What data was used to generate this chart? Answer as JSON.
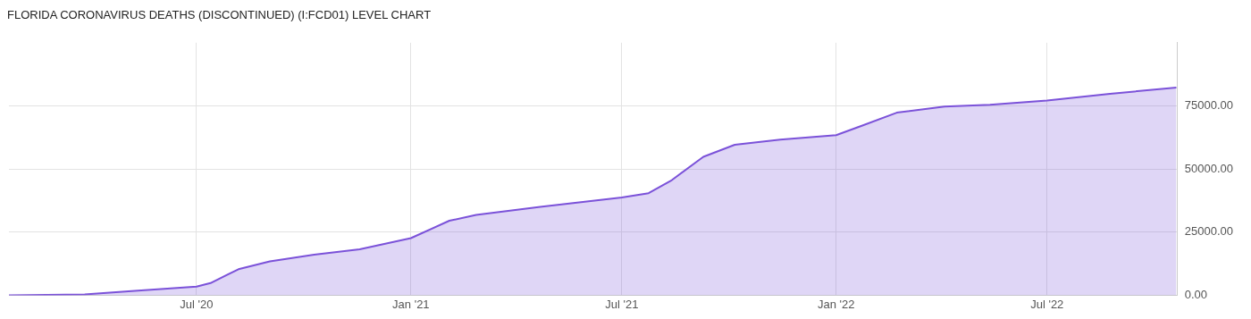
{
  "chart_data": {
    "type": "area",
    "title": "FLORIDA CORONAVIRUS DEATHS (DISCONTINUED) (I:FCD01) LEVEL CHART",
    "x": [
      "2020-01-22",
      "2020-03-27",
      "2020-05-09",
      "2020-07-01",
      "2020-07-13",
      "2020-08-06",
      "2020-09-02",
      "2020-10-10",
      "2020-11-18",
      "2021-01-01",
      "2021-02-03",
      "2021-02-26",
      "2021-04-22",
      "2021-07-01",
      "2021-07-24",
      "2021-08-13",
      "2021-09-09",
      "2021-10-06",
      "2021-11-14",
      "2022-01-01",
      "2022-01-23",
      "2022-02-22",
      "2022-04-04",
      "2022-05-13",
      "2022-07-01",
      "2022-08-24",
      "2022-10-20"
    ],
    "values": [
      0,
      300,
      1700,
      3400,
      4800,
      10300,
      13400,
      16100,
      18200,
      22600,
      29500,
      31800,
      35000,
      38700,
      40400,
      45600,
      54800,
      59600,
      61600,
      63400,
      67100,
      72300,
      74700,
      75400,
      77100,
      79800,
      82200
    ],
    "color": "#7b52d9",
    "xlim": [
      "2020-01-22",
      "2022-10-21"
    ],
    "xticks": [
      {
        "value": "2020-07-01",
        "label": "Jul '20"
      },
      {
        "value": "2021-01-01",
        "label": "Jan '21"
      },
      {
        "value": "2021-07-01",
        "label": "Jul '21"
      },
      {
        "value": "2022-01-01",
        "label": "Jan '22"
      },
      {
        "value": "2022-07-01",
        "label": "Jul '22"
      }
    ],
    "ylim": [
      0,
      100000
    ],
    "yticks": [
      {
        "value": 0,
        "label": "0.00"
      },
      {
        "value": 25000,
        "label": "25000.00"
      },
      {
        "value": 50000,
        "label": "50000.00"
      },
      {
        "value": 75000,
        "label": "75000.00"
      }
    ],
    "grid": true,
    "marker": "none"
  }
}
